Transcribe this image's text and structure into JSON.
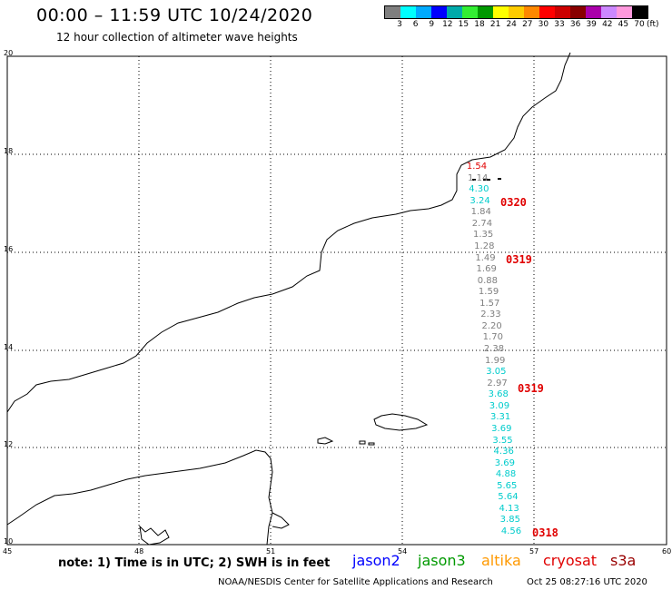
{
  "header": {
    "title": "00:00 – 11:59 UTC 10/24/2020",
    "subtitle": "12 hour collection of altimeter wave heights"
  },
  "legend": {
    "colors": [
      "#7f7f7f",
      "#00ffff",
      "#00aaff",
      "#0000ff",
      "#00aaaa",
      "#33ee33",
      "#009900",
      "#ffff00",
      "#ffcc00",
      "#ff8800",
      "#ff0000",
      "#cc0000",
      "#880000",
      "#aa00aa",
      "#cc88ff",
      "#ff99dd",
      "#000000"
    ],
    "ticks": [
      "3",
      "6",
      "9",
      "12",
      "15",
      "18",
      "21",
      "24",
      "27",
      "30",
      "33",
      "36",
      "39",
      "42",
      "45",
      "70"
    ],
    "unit": "(ft)"
  },
  "axes": {
    "x_ticks": [
      "45",
      "48",
      "51",
      "54",
      "57",
      "60"
    ],
    "y_ticks": [
      "20",
      "18",
      "16",
      "14",
      "12",
      "10"
    ]
  },
  "tracks": [
    {
      "label": "1.54",
      "color": "#e00000"
    },
    {
      "label": "1.14",
      "color": "#7f7f7f"
    },
    {
      "label": "4.30",
      "color": "#00cccc"
    },
    {
      "label": "3.24",
      "color": "#00cccc"
    },
    {
      "label": "1.84",
      "color": "#7f7f7f"
    },
    {
      "label": "2.74",
      "color": "#7f7f7f"
    },
    {
      "label": "1.35",
      "color": "#7f7f7f"
    },
    {
      "label": "1.28",
      "color": "#7f7f7f"
    },
    {
      "label": "1.49",
      "color": "#7f7f7f"
    },
    {
      "label": "1.69",
      "color": "#7f7f7f"
    },
    {
      "label": "0.88",
      "color": "#7f7f7f"
    },
    {
      "label": "1.59",
      "color": "#7f7f7f"
    },
    {
      "label": "1.57",
      "color": "#7f7f7f"
    },
    {
      "label": "2.33",
      "color": "#7f7f7f"
    },
    {
      "label": "2.20",
      "color": "#7f7f7f"
    },
    {
      "label": "1.70",
      "color": "#7f7f7f"
    },
    {
      "label": "2.38",
      "color": "#7f7f7f"
    },
    {
      "label": "1.99",
      "color": "#7f7f7f"
    },
    {
      "label": "3.05",
      "color": "#00cccc"
    },
    {
      "label": "2.97",
      "color": "#7f7f7f"
    },
    {
      "label": "3.68",
      "color": "#00cccc"
    },
    {
      "label": "3.09",
      "color": "#00cccc"
    },
    {
      "label": "3.31",
      "color": "#00cccc"
    },
    {
      "label": "3.69",
      "color": "#00cccc"
    },
    {
      "label": "3.55",
      "color": "#00cccc"
    },
    {
      "label": "4.36",
      "color": "#00cccc"
    },
    {
      "label": "3.69",
      "color": "#00cccc"
    },
    {
      "label": "4.88",
      "color": "#00cccc"
    },
    {
      "label": "5.65",
      "color": "#00cccc"
    },
    {
      "label": "5.64",
      "color": "#00cccc"
    },
    {
      "label": "4.13",
      "color": "#00cccc"
    },
    {
      "label": "3.85",
      "color": "#00cccc"
    },
    {
      "label": "4.56",
      "color": "#00cccc"
    }
  ],
  "passes": [
    "0320",
    "0319",
    "0319",
    "0318"
  ],
  "footer": {
    "note": "note:  1) Time is in UTC;  2) SWH is in feet",
    "satellites": [
      {
        "name": "jason2",
        "color": "#0000ff"
      },
      {
        "name": "jason3",
        "color": "#009900"
      },
      {
        "name": "altika",
        "color": "#ff9900"
      },
      {
        "name": "cryosat",
        "color": "#e00000"
      },
      {
        "name": "s3a",
        "color": "#990000"
      }
    ],
    "credit": "NOAA/NESDIS Center for Satellite Applications and Research",
    "timestamp": "Oct 25 08:27:16 UTC 2020"
  }
}
